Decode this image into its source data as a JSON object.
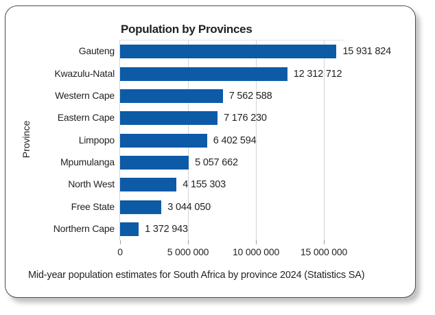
{
  "card": {
    "title": "Population by Provinces",
    "caption": "Mid-year population estimates for South Africa by province 2024 (Statistics SA)"
  },
  "chart_data": {
    "type": "bar",
    "orientation": "horizontal",
    "title": "Population by Provinces",
    "ylabel": "Province",
    "xlabel": "",
    "categories": [
      "Gauteng",
      "Kwazulu-Natal",
      "Western Cape",
      "Eastern Cape",
      "Limpopo",
      "Mpumulanga",
      "North West",
      "Free State",
      "Northern Cape"
    ],
    "values": [
      15931824,
      12312712,
      7562588,
      7176230,
      6402594,
      5057662,
      4155303,
      3044050,
      1372943
    ],
    "value_labels": [
      "15 931 824",
      "12 312 712",
      "7 562 588",
      "7 176 230",
      "6 402 594",
      "5 057 662",
      "4 155 303",
      "3 044 050",
      "1 372 943"
    ],
    "x_ticks": [
      0,
      5000000,
      10000000,
      15000000
    ],
    "x_tick_labels": [
      "0",
      "5 000 000",
      "10 000 000",
      "15 000 000"
    ],
    "xlim": [
      0,
      16500000
    ],
    "grid": "vertical",
    "legend": "none",
    "bar_color": "#0d5aa7",
    "caption": "Mid-year population estimates for South Africa by province 2024 (Statistics SA)"
  },
  "colors": {
    "bar": "#0d5aa7",
    "gridline": "#d4d4d4",
    "text": "#231f20",
    "card_border": "#4a4a4a"
  }
}
